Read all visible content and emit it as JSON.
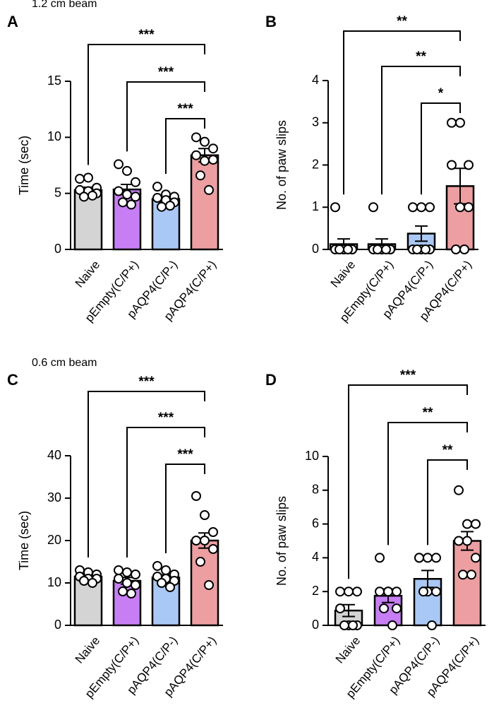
{
  "chart_data": [
    {
      "type": "bar",
      "label": "A",
      "title": "1.2 cm beam",
      "y_label": "Time (sec)",
      "categories": [
        "Naive",
        "pEmpty(C/P+)",
        "pAQP4(C/P-)",
        "pAQP4(C/P+)"
      ],
      "colors": [
        "#d4d4d4",
        "#c77df3",
        "#a9c8f5",
        "#ec9ea0"
      ],
      "values": [
        5.3,
        5.35,
        4.5,
        8.4
      ],
      "errors": [
        0.25,
        0.45,
        0.25,
        0.6
      ],
      "points": [
        [
          6.3,
          6.4,
          5.5,
          5.3,
          5.2,
          5.0,
          4.7,
          4.8
        ],
        [
          7.6,
          7.0,
          6.0,
          5.2,
          4.9,
          4.7,
          4.2,
          4.0
        ],
        [
          5.6,
          4.9,
          4.7,
          4.6,
          4.4,
          4.2,
          3.8,
          3.9
        ],
        [
          10.0,
          9.6,
          9.0,
          8.4,
          7.9,
          8.0,
          6.6,
          5.3
        ]
      ],
      "ylim": [
        0,
        15
      ],
      "yticks": [
        0,
        5,
        10,
        15
      ],
      "comparisons": [
        {
          "groups": [
            0,
            3
          ],
          "label": "***"
        },
        {
          "groups": [
            1,
            3
          ],
          "label": "***"
        },
        {
          "groups": [
            2,
            3
          ],
          "label": "***"
        }
      ]
    },
    {
      "type": "bar",
      "label": "B",
      "y_label": "No. of paw slips",
      "categories": [
        "Naive",
        "pEmpty(C/P+)",
        "pAQP4(C/P-)",
        "pAQP4(C/P+)"
      ],
      "colors": [
        "#d4d4d4",
        "#c77df3",
        "#a9c8f5",
        "#ec9ea0"
      ],
      "values": [
        0.125,
        0.125,
        0.375,
        1.5
      ],
      "errors": [
        0.125,
        0.125,
        0.18,
        0.42
      ],
      "points": [
        [
          1,
          0,
          0,
          0,
          0,
          0,
          0,
          0
        ],
        [
          1,
          0,
          0,
          0,
          0,
          0,
          0,
          0
        ],
        [
          1,
          1,
          1,
          0,
          0,
          0,
          0,
          0
        ],
        [
          3,
          3,
          2,
          2,
          1,
          1,
          0,
          0
        ]
      ],
      "ylim": [
        0,
        4
      ],
      "yticks": [
        0,
        1,
        2,
        3,
        4
      ],
      "comparisons": [
        {
          "groups": [
            0,
            3
          ],
          "label": "**"
        },
        {
          "groups": [
            1,
            3
          ],
          "label": "**"
        },
        {
          "groups": [
            2,
            3
          ],
          "label": "*"
        }
      ]
    },
    {
      "type": "bar",
      "label": "C",
      "title": "0.6 cm beam",
      "y_label": "Time (sec)",
      "categories": [
        "Naive",
        "pEmpty(C/P+)",
        "pAQP4(C/P-)",
        "pAQP4(C/P+)"
      ],
      "colors": [
        "#d4d4d4",
        "#c77df3",
        "#a9c8f5",
        "#ec9ea0"
      ],
      "values": [
        11.5,
        10.5,
        11.3,
        20
      ],
      "errors": [
        0.4,
        0.8,
        0.6,
        1.8
      ],
      "points": [
        [
          13,
          12.5,
          12,
          11.5,
          11,
          11,
          10.5,
          10
        ],
        [
          13,
          12.5,
          12,
          11,
          10,
          9.5,
          8,
          7.5
        ],
        [
          14,
          13,
          12,
          11.5,
          11,
          10.5,
          10,
          9
        ],
        [
          30.5,
          26,
          22,
          20,
          20,
          18,
          15,
          9.5
        ]
      ],
      "ylim": [
        0,
        40
      ],
      "yticks": [
        0,
        10,
        20,
        30,
        40
      ],
      "comparisons": [
        {
          "groups": [
            0,
            3
          ],
          "label": "***"
        },
        {
          "groups": [
            1,
            3
          ],
          "label": "***"
        },
        {
          "groups": [
            2,
            3
          ],
          "label": "***"
        }
      ]
    },
    {
      "type": "bar",
      "label": "D",
      "y_label": "No. of paw slips",
      "categories": [
        "Naive",
        "pEmpty(C/P+)",
        "pAQP4(C/P-)",
        "pAQP4(C/P+)"
      ],
      "colors": [
        "#d4d4d4",
        "#c77df3",
        "#a9c8f5",
        "#ec9ea0"
      ],
      "values": [
        0.875,
        1.75,
        2.75,
        5
      ],
      "errors": [
        0.35,
        0.4,
        0.5,
        0.55
      ],
      "points": [
        [
          2,
          2,
          2,
          1,
          0,
          0,
          0,
          0
        ],
        [
          4,
          2,
          2,
          2,
          2,
          1,
          1,
          0
        ],
        [
          4,
          4,
          4,
          4,
          2,
          2,
          2,
          0
        ],
        [
          8,
          6,
          6,
          5,
          5,
          4,
          3,
          3
        ]
      ],
      "ylim": [
        0,
        10
      ],
      "yticks": [
        0,
        2,
        4,
        6,
        8,
        10
      ],
      "comparisons": [
        {
          "groups": [
            0,
            3
          ],
          "label": "***"
        },
        {
          "groups": [
            1,
            3
          ],
          "label": "**"
        },
        {
          "groups": [
            2,
            3
          ],
          "label": "**"
        }
      ]
    }
  ]
}
